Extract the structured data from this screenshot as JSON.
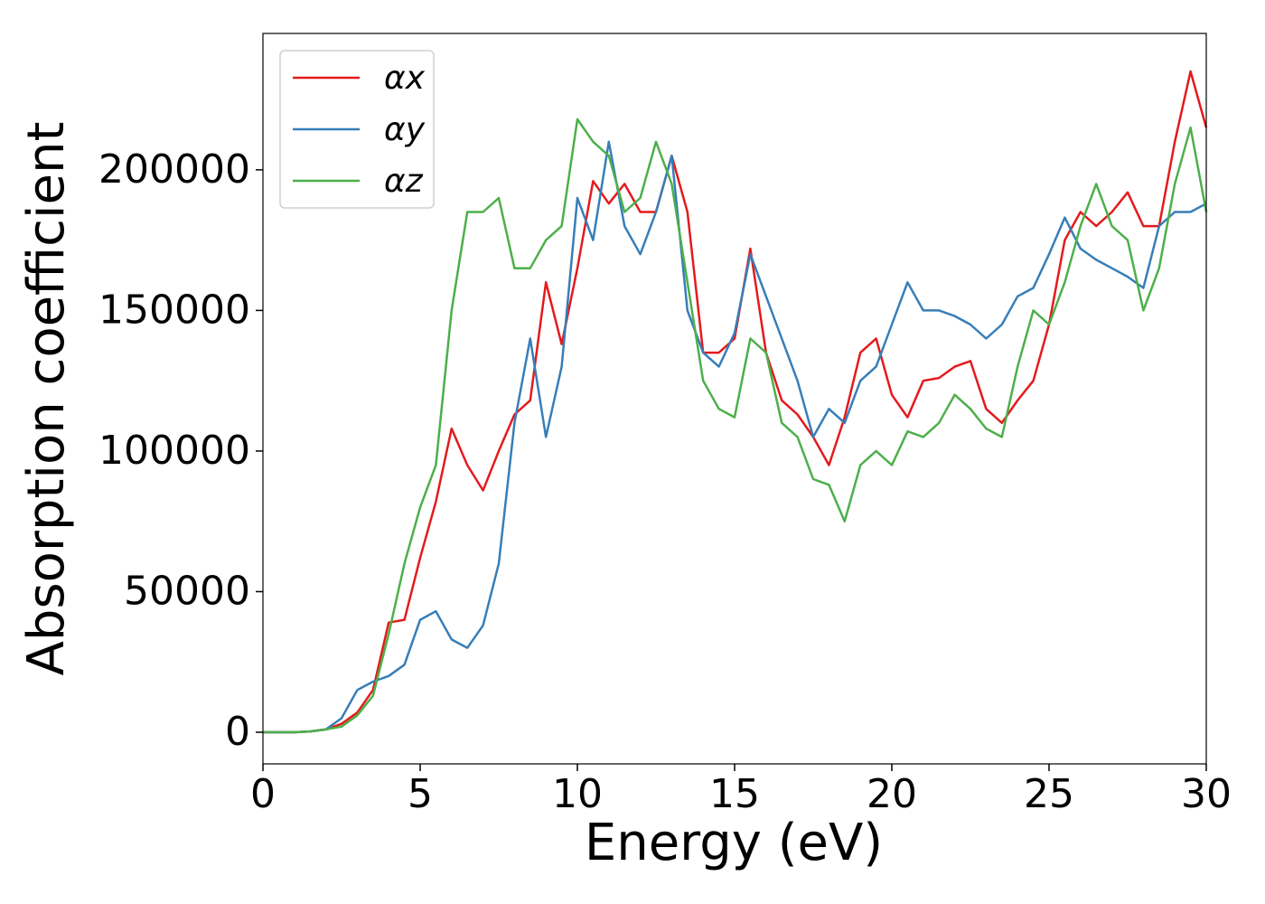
{
  "chart_data": {
    "type": "line",
    "xlabel": "Energy (eV)",
    "ylabel": "Absorption coefficient",
    "x": [
      0,
      0.5,
      1,
      1.5,
      2,
      2.5,
      3,
      3.5,
      4,
      4.5,
      5,
      5.5,
      6,
      6.5,
      7,
      7.5,
      8,
      8.5,
      9,
      9.5,
      10,
      10.5,
      11,
      11.5,
      12,
      12.5,
      13,
      13.5,
      14,
      14.5,
      15,
      15.5,
      16,
      16.5,
      17,
      17.5,
      18,
      18.5,
      19,
      19.5,
      20,
      20.5,
      21,
      21.5,
      22,
      22.5,
      23,
      23.5,
      24,
      24.5,
      25,
      25.5,
      26,
      26.5,
      27,
      27.5,
      28,
      28.5,
      29,
      29.5,
      30
    ],
    "series": [
      {
        "name": "αx",
        "color": "#e41a1c",
        "values": [
          0,
          0,
          0,
          300,
          1000,
          3000,
          7000,
          15000,
          39000,
          40000,
          62000,
          82000,
          108000,
          95000,
          86000,
          100000,
          113000,
          118000,
          160000,
          138000,
          165000,
          196000,
          188000,
          195000,
          185000,
          185000,
          205000,
          185000,
          135000,
          135000,
          140000,
          172000,
          135000,
          118000,
          113000,
          105000,
          95000,
          112000,
          135000,
          140000,
          120000,
          112000,
          125000,
          126000,
          130000,
          132000,
          115000,
          110000,
          118000,
          125000,
          145000,
          175000,
          185000,
          180000,
          185000,
          192000,
          180000,
          180000,
          210000,
          235000,
          215000
        ]
      },
      {
        "name": "αy",
        "color": "#377eb8",
        "values": [
          0,
          0,
          0,
          300,
          1000,
          5000,
          15000,
          18000,
          20000,
          24000,
          40000,
          43000,
          33000,
          30000,
          38000,
          60000,
          110000,
          140000,
          105000,
          130000,
          190000,
          175000,
          210000,
          180000,
          170000,
          185000,
          205000,
          150000,
          135000,
          130000,
          142000,
          170000,
          155000,
          140000,
          125000,
          105000,
          115000,
          110000,
          125000,
          130000,
          145000,
          160000,
          150000,
          150000,
          148000,
          145000,
          140000,
          145000,
          155000,
          158000,
          170000,
          183000,
          172000,
          168000,
          165000,
          162000,
          158000,
          180000,
          185000,
          185000,
          188000
        ]
      },
      {
        "name": "αz",
        "color": "#4daf4a",
        "values": [
          0,
          0,
          0,
          300,
          1000,
          2000,
          6000,
          13000,
          35000,
          60000,
          80000,
          95000,
          150000,
          185000,
          185000,
          190000,
          165000,
          165000,
          175000,
          180000,
          218000,
          210000,
          205000,
          185000,
          190000,
          210000,
          195000,
          160000,
          125000,
          115000,
          112000,
          140000,
          135000,
          110000,
          105000,
          90000,
          88000,
          75000,
          95000,
          100000,
          95000,
          107000,
          105000,
          110000,
          120000,
          115000,
          108000,
          105000,
          130000,
          150000,
          145000,
          160000,
          180000,
          195000,
          180000,
          175000,
          150000,
          165000,
          195000,
          215000,
          185000
        ]
      }
    ],
    "xlim": [
      0,
      30
    ],
    "xticks": [
      0,
      5,
      10,
      15,
      20,
      25,
      30
    ],
    "ylim": [
      -11250,
      248500
    ],
    "yticks": [
      0,
      50000,
      100000,
      150000,
      200000
    ],
    "legend": "upper left",
    "grid": false
  }
}
